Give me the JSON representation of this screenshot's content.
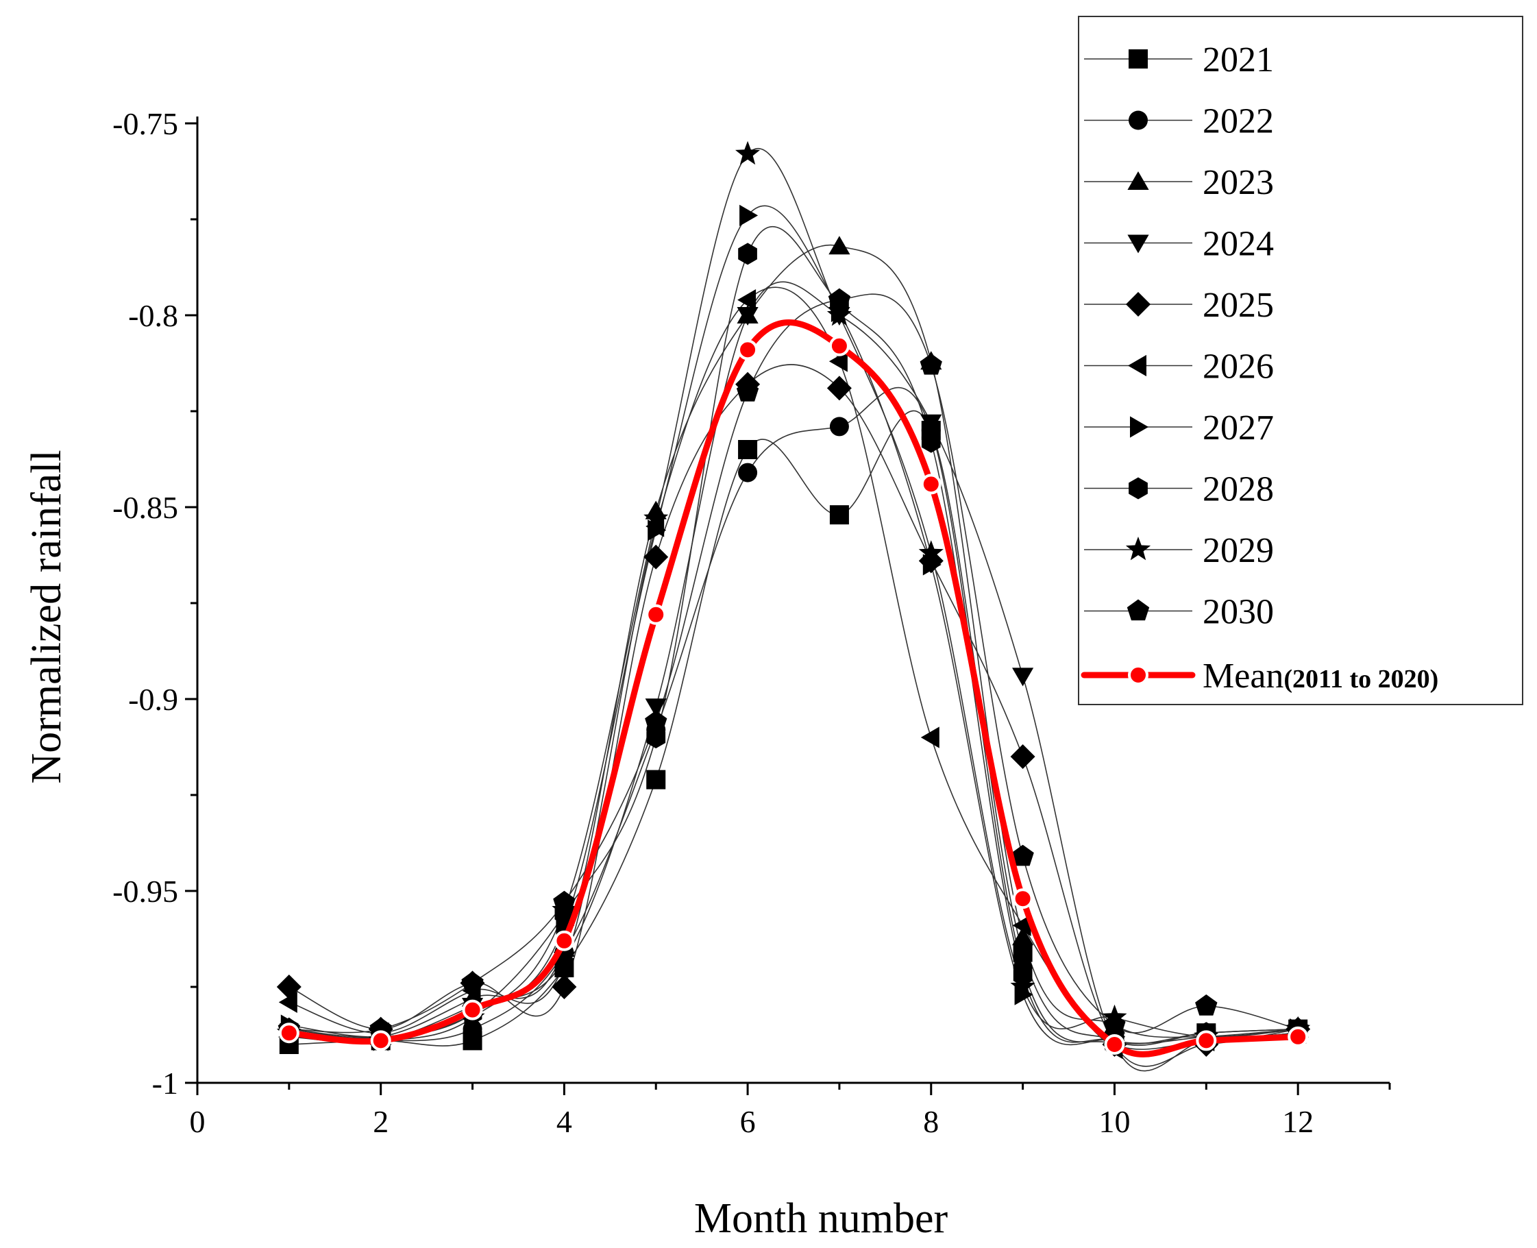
{
  "chart_data": {
    "type": "line",
    "title": "",
    "xlabel": "Month number",
    "ylabel": "Normalized rainfall",
    "xlim": [
      0,
      13
    ],
    "ylim": [
      -1,
      -0.75
    ],
    "xticks": [
      0,
      2,
      4,
      6,
      8,
      10,
      12
    ],
    "xtick_labels": [
      "0",
      "2",
      "4",
      "6",
      "8",
      "10",
      "12"
    ],
    "yticks": [
      -1,
      -0.95,
      -0.9,
      -0.85,
      -0.8,
      -0.75
    ],
    "ytick_labels": [
      "-1",
      "-0.95",
      "-0.9",
      "-0.85",
      "-0.8",
      "-0.75"
    ],
    "legend_position": "top-right",
    "x": [
      1,
      2,
      3,
      4,
      5,
      6,
      7,
      8,
      9,
      10,
      11,
      12
    ],
    "series": [
      {
        "name": "2021",
        "marker": "square",
        "values": [
          -0.99,
          -0.989,
          -0.989,
          -0.97,
          -0.921,
          -0.835,
          -0.852,
          -0.83,
          -0.966,
          -0.989,
          -0.987,
          -0.986
        ]
      },
      {
        "name": "2022",
        "marker": "circle",
        "values": [
          -0.987,
          -0.989,
          -0.986,
          -0.966,
          -0.908,
          -0.841,
          -0.829,
          -0.83,
          -0.97,
          -0.99,
          -0.989,
          -0.987
        ]
      },
      {
        "name": "2023",
        "marker": "triangle-up",
        "values": [
          -0.986,
          -0.988,
          -0.978,
          -0.965,
          -0.851,
          -0.8,
          -0.782,
          -0.812,
          -0.962,
          -0.985,
          -0.988,
          -0.986
        ]
      },
      {
        "name": "2024",
        "marker": "triangle-down",
        "values": [
          -0.988,
          -0.989,
          -0.98,
          -0.968,
          -0.902,
          -0.8,
          -0.8,
          -0.828,
          -0.894,
          -0.99,
          -0.989,
          -0.987
        ]
      },
      {
        "name": "2025",
        "marker": "diamond",
        "values": [
          -0.975,
          -0.986,
          -0.974,
          -0.975,
          -0.863,
          -0.818,
          -0.819,
          -0.864,
          -0.915,
          -0.99,
          -0.99,
          -0.986
        ]
      },
      {
        "name": "2026",
        "marker": "triangle-left",
        "values": [
          -0.979,
          -0.987,
          -0.976,
          -0.969,
          -0.855,
          -0.796,
          -0.812,
          -0.91,
          -0.959,
          -0.991,
          -0.989,
          -0.987
        ]
      },
      {
        "name": "2027",
        "marker": "triangle-right",
        "values": [
          -0.985,
          -0.988,
          -0.982,
          -0.959,
          -0.856,
          -0.774,
          -0.799,
          -0.865,
          -0.977,
          -0.989,
          -0.988,
          -0.986
        ]
      },
      {
        "name": "2028",
        "marker": "hexagon",
        "values": [
          -0.986,
          -0.988,
          -0.982,
          -0.956,
          -0.91,
          -0.784,
          -0.797,
          -0.833,
          -0.972,
          -0.989,
          -0.987,
          -0.986
        ]
      },
      {
        "name": "2029",
        "marker": "star",
        "values": [
          -0.987,
          -0.989,
          -0.983,
          -0.955,
          -0.853,
          -0.758,
          -0.8,
          -0.862,
          -0.975,
          -0.983,
          -0.988,
          -0.986
        ]
      },
      {
        "name": "2030",
        "marker": "pentagon",
        "values": [
          -0.986,
          -0.986,
          -0.974,
          -0.953,
          -0.906,
          -0.82,
          -0.796,
          -0.813,
          -0.941,
          -0.985,
          -0.98,
          -0.986
        ]
      }
    ],
    "mean": {
      "name": "Mean",
      "name_suffix": "(2011 to 2020)",
      "color": "#ff0000",
      "marker": "circle",
      "values": [
        -0.987,
        -0.989,
        -0.981,
        -0.963,
        -0.878,
        -0.809,
        -0.808,
        -0.844,
        -0.952,
        -0.99,
        -0.989,
        -0.988
      ]
    }
  }
}
